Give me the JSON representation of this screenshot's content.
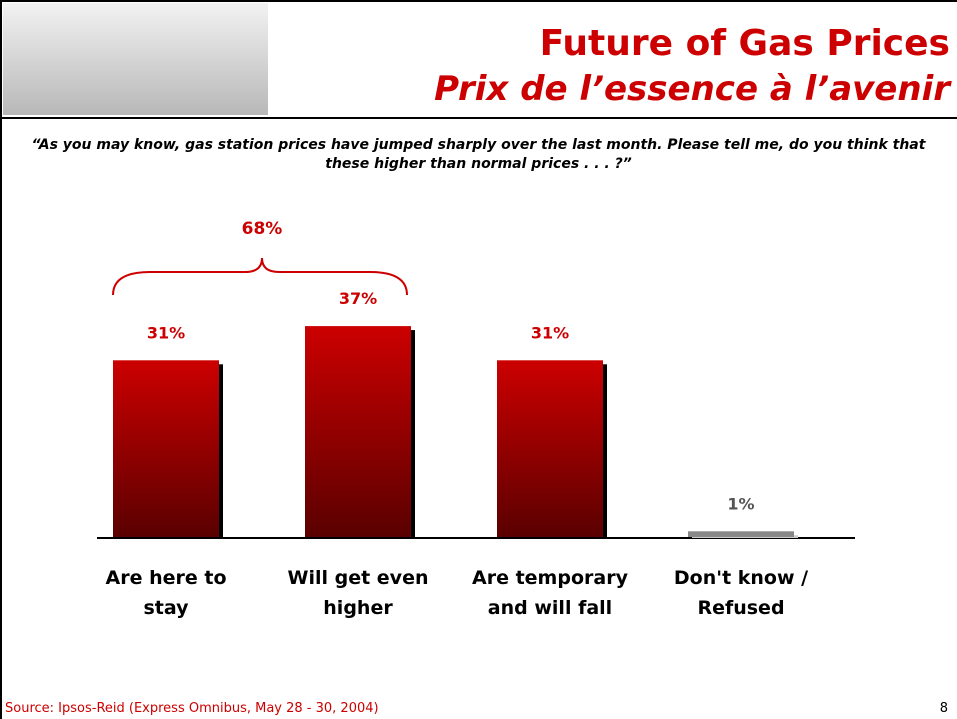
{
  "chart_data": {
    "type": "bar",
    "title": "Future of Gas Prices",
    "subtitle": "Prix de l’essence à l’avenir",
    "question": "“As you may know, gas station prices have jumped sharply over the last month. Please tell me, do you think that these higher than normal prices . . . ?”",
    "categories": [
      "Are here to stay",
      "Will get even higher",
      "Are temporary and will fall",
      "Don't know / Refused"
    ],
    "values": [
      31,
      37,
      31,
      1
    ],
    "value_labels": [
      "31%",
      "37%",
      "31%",
      "1%"
    ],
    "colors": [
      "#cc0000",
      "#cc0000",
      "#cc0000",
      "#888888"
    ],
    "ylim": [
      0,
      40
    ],
    "bracket_label": "68%",
    "source": "Source: Ipsos-Reid (Express Omnibus, May 28 - 30, 2004)",
    "page_number": "8"
  }
}
